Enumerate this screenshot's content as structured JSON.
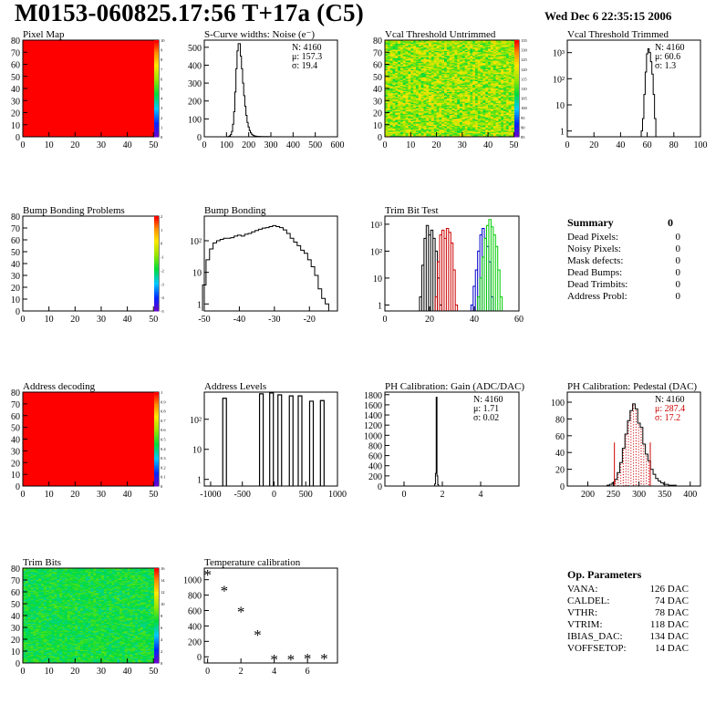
{
  "header": {
    "title": "M0153-060825.17:56 T+17a (C5)",
    "date": "Wed Dec  6 22:35:15 2006"
  },
  "colors": {
    "hist_line": "#000000",
    "red_map": "#ff0000",
    "pedestal_fit": "#cc0000",
    "trim_red": "#cc0000",
    "trim_blue": "#0000cc",
    "trim_green": "#00cc00"
  },
  "chart_data": [
    {
      "id": "pixel-map",
      "type": "heatmap",
      "title": "Pixel Map",
      "xlim": [
        0,
        52
      ],
      "ylim": [
        0,
        80
      ],
      "xticks": [
        "0",
        "10",
        "20",
        "30",
        "40",
        "50"
      ],
      "yticks": [
        "0",
        "10",
        "20",
        "30",
        "40",
        "50",
        "60",
        "70",
        "80"
      ],
      "fill": "solid-red",
      "zlim": [
        0,
        10
      ],
      "zticks": [
        "0",
        "1",
        "2",
        "3",
        "4",
        "5",
        "6",
        "7",
        "8",
        "9",
        "10"
      ]
    },
    {
      "id": "scurve-widths",
      "type": "bar",
      "title": "S-Curve widths: Noise (e⁻)",
      "xlim": [
        0,
        600
      ],
      "ylim": [
        0,
        540
      ],
      "xticks": [
        "0",
        "100",
        "200",
        "300",
        "400",
        "500",
        "600"
      ],
      "yticks": [
        "0",
        "100",
        "200",
        "300",
        "400",
        "500"
      ],
      "stats": [
        "N: 4160",
        "μ: 157.3",
        "σ: 19.4"
      ],
      "x": [
        110,
        115,
        120,
        125,
        130,
        135,
        140,
        145,
        150,
        155,
        160,
        165,
        170,
        175,
        180,
        185,
        190,
        195,
        200,
        205,
        210,
        215,
        220,
        225,
        230,
        235,
        240,
        245,
        250,
        255,
        260,
        265,
        270,
        275,
        280,
        285,
        290
      ],
      "values": [
        2,
        5,
        12,
        30,
        70,
        140,
        250,
        380,
        480,
        520,
        520,
        450,
        380,
        300,
        230,
        170,
        120,
        80,
        55,
        35,
        22,
        14,
        9,
        6,
        4,
        3,
        2,
        2,
        2,
        1,
        1,
        1,
        1,
        0,
        1,
        0,
        1
      ]
    },
    {
      "id": "vcal-untrimmed",
      "type": "heatmap",
      "title": "Vcal Threshold Untrimmed",
      "xlim": [
        0,
        52
      ],
      "ylim": [
        0,
        80
      ],
      "xticks": [
        "0",
        "10",
        "20",
        "30",
        "40",
        "50"
      ],
      "yticks": [
        "0",
        "10",
        "20",
        "30",
        "40",
        "50",
        "60",
        "70",
        "80"
      ],
      "fill": "noise-yellow-green",
      "zlim": [
        85,
        135
      ],
      "zticks": [
        "135",
        "130",
        "125",
        "120",
        "115",
        "110",
        "105",
        "100",
        "95",
        "90",
        "85"
      ]
    },
    {
      "id": "vcal-trimmed",
      "type": "bar",
      "title": "Vcal Threshold Trimmed",
      "xlim": [
        0,
        100
      ],
      "ylim": [
        0.6,
        3000
      ],
      "log_y": true,
      "xticks": [
        "0",
        "20",
        "40",
        "60",
        "80",
        "100"
      ],
      "yticks": [
        "1",
        "10",
        "10²",
        "10³"
      ],
      "stats": [
        "N: 4160",
        "μ: 60.6",
        "σ: 1.3"
      ],
      "x": [
        56,
        57,
        58,
        59,
        60,
        61,
        62,
        63,
        64,
        65,
        66
      ],
      "values": [
        1,
        3,
        25,
        180,
        900,
        1400,
        1000,
        450,
        150,
        25,
        3
      ]
    },
    {
      "id": "bump-problems",
      "type": "heatmap",
      "title": "Bump Bonding Problems",
      "xlim": [
        0,
        52
      ],
      "ylim": [
        0,
        80
      ],
      "xticks": [
        "0",
        "10",
        "20",
        "30",
        "40",
        "50"
      ],
      "yticks": [
        "0",
        "10",
        "20",
        "30",
        "40",
        "50",
        "60",
        "70",
        "80"
      ],
      "fill": "empty",
      "zlim": [
        -5,
        2
      ],
      "zticks": [
        "2",
        "1",
        "0",
        "-1",
        "-2",
        "-3",
        "-4",
        "-5"
      ]
    },
    {
      "id": "bump-bonding",
      "type": "bar",
      "title": "Bump Bonding",
      "xlim": [
        -50,
        -12
      ],
      "ylim": [
        0.6,
        600
      ],
      "log_y": true,
      "xticks": [
        "-50",
        "-40",
        "-30",
        "-20"
      ],
      "yticks": [
        "1",
        "10",
        "10²"
      ],
      "x": [
        -50,
        -49,
        -48,
        -47,
        -46,
        -45,
        -44,
        -43,
        -42,
        -41,
        -40,
        -39,
        -38,
        -37,
        -36,
        -35,
        -34,
        -33,
        -32,
        -31,
        -30,
        -29,
        -28,
        -27,
        -26,
        -25,
        -24,
        -23,
        -22,
        -21,
        -20,
        -19,
        -18,
        -17,
        -16,
        -15,
        -14,
        -13
      ],
      "values": [
        4,
        25,
        55,
        85,
        100,
        110,
        120,
        120,
        125,
        140,
        150,
        140,
        160,
        170,
        190,
        210,
        230,
        250,
        260,
        280,
        300,
        280,
        260,
        220,
        170,
        120,
        90,
        70,
        50,
        40,
        25,
        15,
        8,
        3,
        1.5,
        1,
        0,
        0
      ]
    },
    {
      "id": "trim-bit-test",
      "type": "line",
      "title": "Trim Bit Test",
      "xlim": [
        0,
        60
      ],
      "ylim": [
        0.6,
        2000
      ],
      "log_y": true,
      "xticks": [
        "0",
        "20",
        "40",
        "60"
      ],
      "yticks": [
        "1",
        "10",
        "10²",
        "10³"
      ],
      "series": [
        {
          "color": "#000000",
          "x": [
            16,
            17,
            18,
            19,
            20,
            21,
            22,
            23,
            24,
            25
          ],
          "values": [
            2,
            30,
            300,
            900,
            400,
            600,
            300,
            100,
            10,
            1
          ]
        },
        {
          "color": "#cc0000",
          "x": [
            23,
            24,
            25,
            26,
            27,
            28,
            29,
            30,
            31,
            32
          ],
          "values": [
            2,
            40,
            400,
            600,
            300,
            700,
            500,
            200,
            20,
            1
          ]
        },
        {
          "color": "#0000cc",
          "x": [
            39,
            40,
            41,
            42,
            43,
            44,
            45,
            46,
            47,
            48
          ],
          "values": [
            1,
            5,
            20,
            100,
            400,
            700,
            300,
            150,
            40,
            2
          ]
        },
        {
          "color": "#00cc00",
          "x": [
            42,
            43,
            44,
            45,
            46,
            47,
            48,
            49,
            50,
            51,
            52
          ],
          "values": [
            2,
            10,
            60,
            300,
            900,
            1500,
            800,
            400,
            150,
            20,
            2
          ]
        }
      ]
    },
    {
      "id": "address-decoding",
      "type": "heatmap",
      "title": "Address decoding",
      "xlim": [
        0,
        52
      ],
      "ylim": [
        0,
        80
      ],
      "xticks": [
        "0",
        "10",
        "20",
        "30",
        "40",
        "50"
      ],
      "yticks": [
        "0",
        "10",
        "20",
        "30",
        "40",
        "50",
        "60",
        "70",
        "80"
      ],
      "fill": "solid-red",
      "zlim": [
        0,
        1
      ],
      "zticks": [
        "1",
        "0.9",
        "0.8",
        "0.7",
        "0.6",
        "0.5",
        "0.4",
        "0.3",
        "0.2",
        "0.1",
        "0"
      ]
    },
    {
      "id": "address-levels",
      "type": "bar",
      "title": "Address Levels",
      "xlim": [
        -1100,
        1000
      ],
      "ylim": [
        0.6,
        800
      ],
      "log_y": true,
      "xticks": [
        "-1000",
        "-500",
        "0",
        "500",
        "1000"
      ],
      "yticks": [
        "1",
        "10",
        "10²"
      ],
      "x": [
        -780,
        -200,
        -40,
        90,
        270,
        410,
        590,
        760
      ],
      "values": [
        500,
        700,
        750,
        650,
        600,
        600,
        400,
        420
      ]
    },
    {
      "id": "ph-gain",
      "type": "bar",
      "title": "PH Calibration: Gain (ADC/DAC)",
      "xlim": [
        -1,
        6
      ],
      "ylim": [
        0,
        1850
      ],
      "xticks": [
        "0",
        "2",
        "4"
      ],
      "yticks": [
        "0",
        "200",
        "400",
        "600",
        "800",
        "1000",
        "1200",
        "1400",
        "1600",
        "1800"
      ],
      "stats": [
        "N: 4160",
        "μ: 1.71",
        "σ: 0.02"
      ],
      "x": [
        1.62,
        1.66,
        1.7,
        1.74,
        1.78
      ],
      "values": [
        40,
        250,
        1750,
        200,
        30
      ]
    },
    {
      "id": "ph-pedestal",
      "type": "bar",
      "title": "PH Calibration: Pedestal (DAC)",
      "xlim": [
        160,
        420
      ],
      "ylim": [
        0,
        112
      ],
      "xticks": [
        "200",
        "250",
        "300",
        "350",
        "400"
      ],
      "yticks": [
        "0",
        "20",
        "40",
        "60",
        "80",
        "100"
      ],
      "stats": [
        "N: 4160",
        "μ: 287.4",
        "σ: 17.2"
      ],
      "fit_color": "#cc0000",
      "fit_lines_at": [
        252,
        322
      ],
      "x": [
        240,
        245,
        250,
        255,
        260,
        265,
        270,
        275,
        280,
        285,
        290,
        295,
        300,
        305,
        310,
        315,
        320,
        325,
        330,
        335,
        340,
        345,
        350,
        355,
        360,
        365,
        370,
        375
      ],
      "values": [
        1,
        2,
        4,
        8,
        16,
        28,
        45,
        62,
        78,
        90,
        98,
        92,
        75,
        70,
        50,
        38,
        30,
        20,
        14,
        9,
        6,
        4,
        2,
        2,
        1,
        1,
        1,
        0
      ]
    },
    {
      "id": "trim-bits",
      "type": "heatmap",
      "title": "Trim Bits",
      "xlim": [
        0,
        52
      ],
      "ylim": [
        0,
        80
      ],
      "xticks": [
        "0",
        "10",
        "20",
        "30",
        "40",
        "50"
      ],
      "yticks": [
        "0",
        "10",
        "20",
        "30",
        "40",
        "50",
        "60",
        "70",
        "80"
      ],
      "fill": "noise-green",
      "zlim": [
        0,
        16
      ],
      "zticks": [
        "16",
        "14",
        "12",
        "10",
        "8",
        "6",
        "4",
        "2",
        "0"
      ]
    },
    {
      "id": "temperature-calibration",
      "type": "scatter",
      "title": "Temperature calibration",
      "xlim": [
        -0.2,
        7.8
      ],
      "ylim": [
        -80,
        1150
      ],
      "xticks": [
        "0",
        "2",
        "4",
        "6"
      ],
      "yticks": [
        "0",
        "200",
        "400",
        "600",
        "800",
        "1000"
      ],
      "x": [
        0,
        1,
        2,
        3,
        4,
        5,
        6,
        7
      ],
      "values": [
        1080,
        870,
        600,
        300,
        -20,
        -20,
        -10,
        -10
      ]
    }
  ],
  "summary": {
    "heading": "Summary",
    "heading_value": "0",
    "rows": [
      {
        "label": "Dead Pixels:",
        "value": "0"
      },
      {
        "label": "Noisy Pixels:",
        "value": "0"
      },
      {
        "label": "Mask defects:",
        "value": "0"
      },
      {
        "label": "Dead Bumps:",
        "value": "0"
      },
      {
        "label": "Dead Trimbits:",
        "value": "0"
      },
      {
        "label": "Address Probl:",
        "value": "0"
      }
    ]
  },
  "op_params": {
    "heading": "Op. Parameters",
    "rows": [
      {
        "label": "VANA:",
        "value": "126 DAC"
      },
      {
        "label": "CALDEL:",
        "value": "74 DAC"
      },
      {
        "label": "VTHR:",
        "value": "78 DAC"
      },
      {
        "label": "VTRIM:",
        "value": "118 DAC"
      },
      {
        "label": "IBIAS_DAC:",
        "value": "134 DAC"
      },
      {
        "label": "VOFFSETOP:",
        "value": "14 DAC"
      }
    ]
  }
}
